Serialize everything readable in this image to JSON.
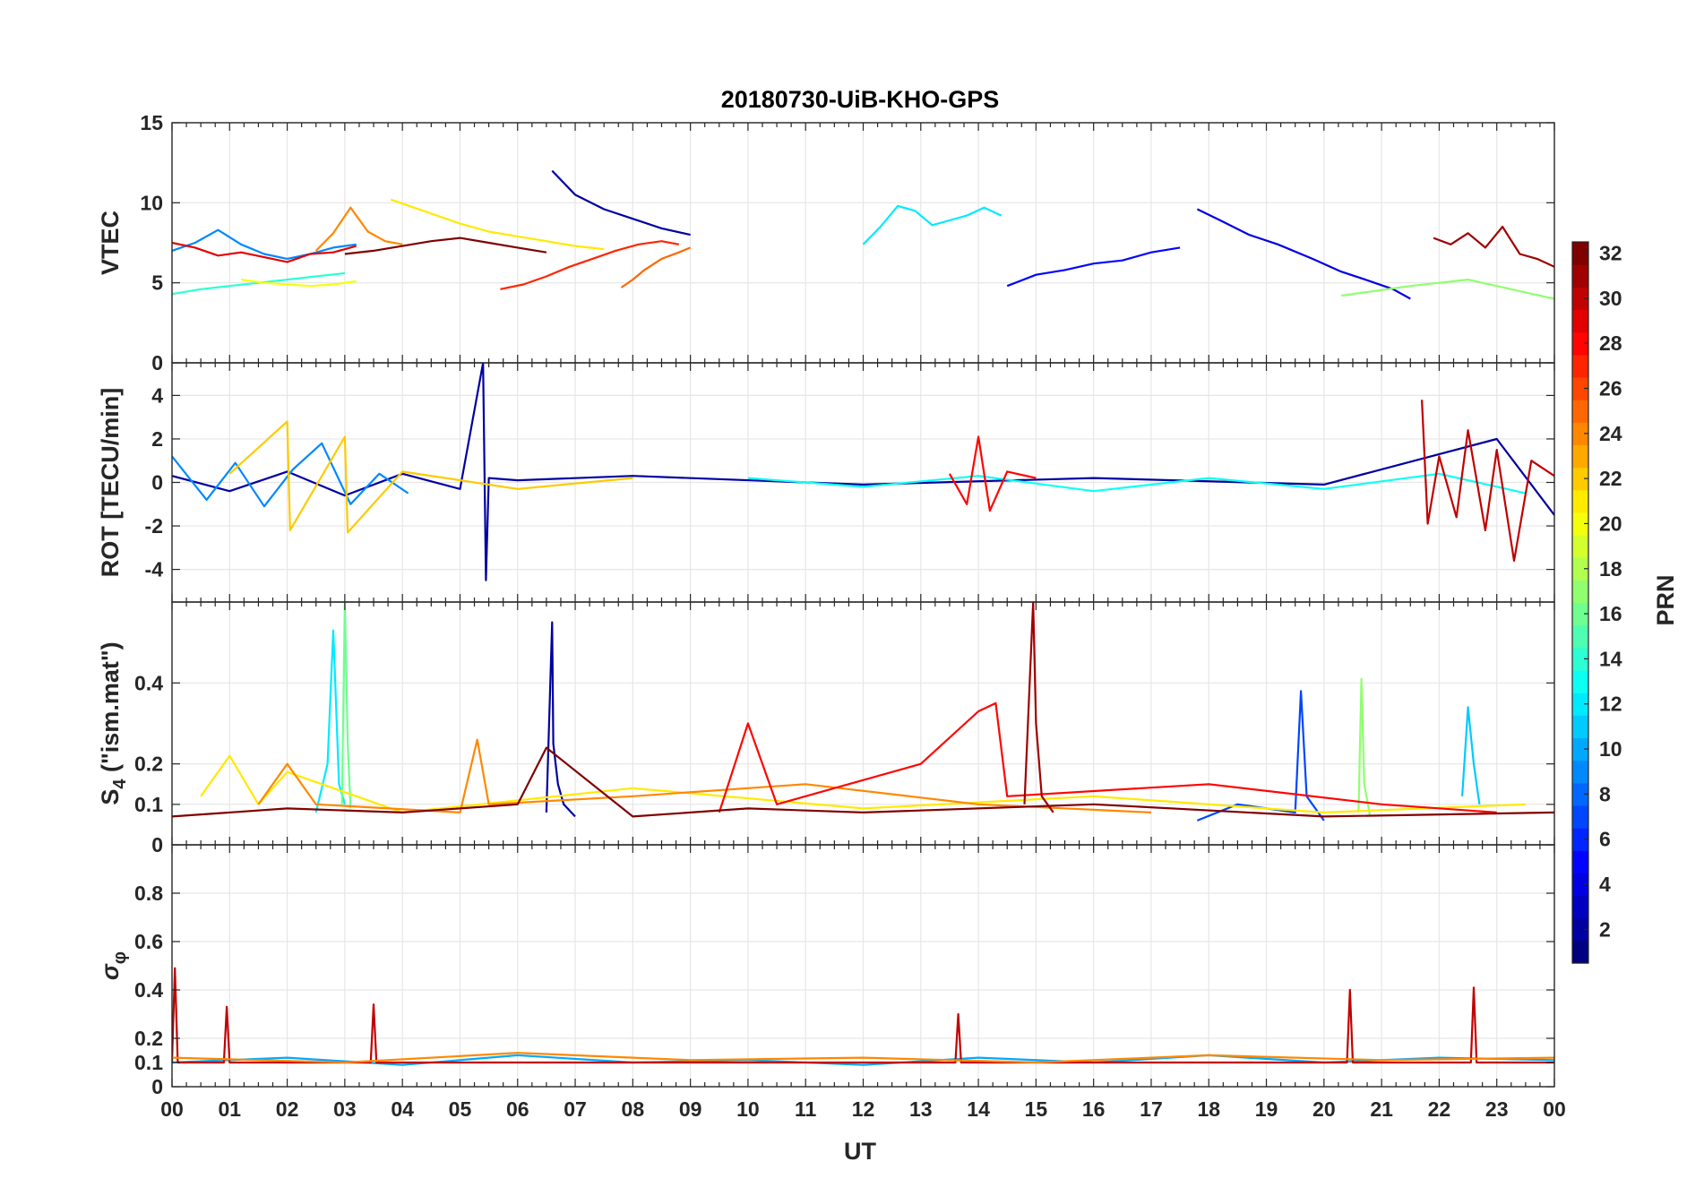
{
  "chart_data": {
    "type": "line",
    "title": "20180730-UiB-KHO-GPS",
    "xlabel": "UT",
    "xlim": [
      0,
      24
    ],
    "x_tick_labels": [
      "00",
      "01",
      "02",
      "03",
      "04",
      "05",
      "06",
      "07",
      "08",
      "09",
      "10",
      "11",
      "12",
      "13",
      "14",
      "15",
      "16",
      "17",
      "18",
      "19",
      "20",
      "21",
      "22",
      "23",
      "00"
    ],
    "grid": true,
    "colorbar": {
      "label": "PRN",
      "range": [
        1,
        32
      ],
      "tick_values": [
        2,
        4,
        6,
        8,
        10,
        12,
        14,
        16,
        18,
        20,
        22,
        24,
        26,
        28,
        30,
        32
      ],
      "tick_labels": [
        "2",
        "4",
        "6",
        "8",
        "10",
        "12",
        "14",
        "16",
        "18",
        "20",
        "22",
        "24",
        "26",
        "28",
        "30",
        "32"
      ],
      "colormap": "jet",
      "colors": [
        "#00008f",
        "#0000ff",
        "#0080ff",
        "#00ffff",
        "#80ff80",
        "#ffff00",
        "#ff8000",
        "#ff0000",
        "#800000"
      ]
    },
    "panels": [
      {
        "id": "vtec",
        "ylabel": "VTEC",
        "ylim": [
          0,
          15
        ],
        "y_tick_values": [
          0,
          5,
          10,
          15
        ],
        "y_tick_labels": [
          "0",
          "5",
          "10",
          "15"
        ],
        "series": [
          {
            "prn": 2,
            "x": [
              6.6,
              7.0,
              7.5,
              8.0,
              8.5,
              9.0
            ],
            "y": [
              12.0,
              10.5,
              9.6,
              9.0,
              8.4,
              8.0
            ]
          },
          {
            "prn": 5,
            "x": [
              14.5,
              15.0,
              15.5,
              16.0,
              16.5,
              17.0,
              17.5
            ],
            "y": [
              4.8,
              5.5,
              5.8,
              6.2,
              6.4,
              6.9,
              7.2
            ]
          },
          {
            "prn": 4,
            "x": [
              17.8,
              18.2,
              18.7,
              19.2,
              19.8,
              20.3,
              20.8,
              21.2,
              21.5
            ],
            "y": [
              9.6,
              8.9,
              8.0,
              7.4,
              6.5,
              5.7,
              5.1,
              4.6,
              4.0
            ]
          },
          {
            "prn": 9,
            "x": [
              0.0,
              0.4,
              0.8,
              1.2,
              1.6,
              2.0,
              2.4,
              2.8,
              3.2
            ],
            "y": [
              7.0,
              7.5,
              8.3,
              7.4,
              6.8,
              6.5,
              6.8,
              7.2,
              7.4
            ]
          },
          {
            "prn": 12,
            "x": [
              12.0,
              12.3,
              12.6,
              12.9,
              13.2,
              13.5,
              13.8,
              14.1,
              14.4
            ],
            "y": [
              7.4,
              8.5,
              9.8,
              9.5,
              8.6,
              8.9,
              9.2,
              9.7,
              9.2
            ]
          },
          {
            "prn": 14,
            "x": [
              0.0,
              0.5,
              1.0,
              1.5,
              2.0,
              2.5,
              3.0
            ],
            "y": [
              4.3,
              4.6,
              4.8,
              5.0,
              5.2,
              5.4,
              5.6
            ]
          },
          {
            "prn": 17,
            "x": [
              20.3,
              20.7,
              21.1,
              21.5,
              22.0,
              22.5,
              23.0,
              23.5,
              24.0
            ],
            "y": [
              4.2,
              4.4,
              4.6,
              4.8,
              5.0,
              5.2,
              4.8,
              4.4,
              4.0
            ]
          },
          {
            "prn": 20,
            "x": [
              1.2,
              1.6,
              2.0,
              2.4,
              2.8,
              3.2
            ],
            "y": [
              5.2,
              5.0,
              4.9,
              4.8,
              4.9,
              5.1
            ]
          },
          {
            "prn": 21,
            "x": [
              3.8,
              4.2,
              4.6,
              5.0,
              5.5,
              6.0,
              6.5,
              7.0,
              7.5
            ],
            "y": [
              10.2,
              9.7,
              9.2,
              8.7,
              8.2,
              7.9,
              7.6,
              7.3,
              7.1
            ]
          },
          {
            "prn": 24,
            "x": [
              2.5,
              2.8,
              3.1,
              3.4,
              3.7,
              4.0
            ],
            "y": [
              7.0,
              8.1,
              9.7,
              8.2,
              7.6,
              7.4
            ]
          },
          {
            "prn": 25,
            "x": [
              7.8,
              8.0,
              8.2,
              8.5,
              8.8,
              9.0
            ],
            "y": [
              4.7,
              5.2,
              5.8,
              6.5,
              6.9,
              7.2
            ]
          },
          {
            "prn": 27,
            "x": [
              5.7,
              6.1,
              6.5,
              6.9,
              7.3,
              7.7,
              8.1,
              8.5,
              8.8
            ],
            "y": [
              4.6,
              4.9,
              5.4,
              6.0,
              6.5,
              7.0,
              7.4,
              7.6,
              7.4
            ]
          },
          {
            "prn": 29,
            "x": [
              0.0,
              0.4,
              0.8,
              1.2,
              1.6,
              2.0,
              2.4,
              2.8,
              3.2
            ],
            "y": [
              7.5,
              7.2,
              6.7,
              6.9,
              6.6,
              6.3,
              6.8,
              6.9,
              7.3
            ]
          },
          {
            "prn": 31,
            "x": [
              21.9,
              22.2,
              22.5,
              22.8,
              23.1,
              23.4,
              23.7,
              24.0
            ],
            "y": [
              7.8,
              7.4,
              8.1,
              7.2,
              8.5,
              6.8,
              6.5,
              6.0
            ]
          },
          {
            "prn": 32,
            "x": [
              3.0,
              3.5,
              4.0,
              4.5,
              5.0,
              5.5,
              6.0,
              6.5
            ],
            "y": [
              6.8,
              7.0,
              7.3,
              7.6,
              7.8,
              7.5,
              7.2,
              6.9
            ]
          }
        ]
      },
      {
        "id": "rot",
        "ylabel": "ROT [TECU/min]",
        "ylim": [
          -5.5,
          5.5
        ],
        "y_tick_values": [
          -4,
          -2,
          0,
          2,
          4
        ],
        "y_tick_labels": [
          "-4",
          "-2",
          "0",
          "2",
          "4"
        ],
        "series": [
          {
            "prn": 2,
            "x": [
              0.0,
              1.0,
              2.0,
              3.0,
              4.0,
              5.0,
              5.4,
              5.45,
              5.5,
              6.0,
              8.0,
              12.0,
              16.0,
              20.0,
              23.0,
              24.0
            ],
            "y": [
              0.3,
              -0.4,
              0.5,
              -0.6,
              0.4,
              -0.3,
              5.5,
              -4.5,
              0.2,
              0.1,
              0.3,
              -0.1,
              0.2,
              -0.1,
              2.0,
              -1.5
            ]
          },
          {
            "prn": 9,
            "x": [
              0.0,
              0.6,
              1.1,
              1.6,
              2.1,
              2.6,
              3.1,
              3.6,
              4.1
            ],
            "y": [
              1.2,
              -0.8,
              0.9,
              -1.1,
              0.6,
              1.8,
              -1.0,
              0.4,
              -0.5
            ]
          },
          {
            "prn": 13,
            "x": [
              10.0,
              12.0,
              14.0,
              16.0,
              18.0,
              20.0,
              22.0,
              23.5
            ],
            "y": [
              0.2,
              -0.2,
              0.3,
              -0.4,
              0.2,
              -0.3,
              0.4,
              -0.5
            ]
          },
          {
            "prn": 22,
            "x": [
              1.0,
              2.0,
              2.05,
              3.0,
              3.05,
              4.0,
              6.0,
              8.0
            ],
            "y": [
              0.4,
              2.8,
              -2.2,
              2.1,
              -2.3,
              0.5,
              -0.3,
              0.2
            ]
          },
          {
            "prn": 28,
            "x": [
              13.5,
              13.8,
              14.0,
              14.2,
              14.5,
              15.0
            ],
            "y": [
              0.4,
              -1.0,
              2.1,
              -1.3,
              0.5,
              0.2
            ]
          },
          {
            "prn": 30,
            "x": [
              21.7,
              21.8,
              22.0,
              22.3,
              22.5,
              22.8,
              23.0,
              23.3,
              23.6,
              24.0
            ],
            "y": [
              3.8,
              -1.9,
              1.2,
              -1.6,
              2.4,
              -2.2,
              1.5,
              -3.6,
              1.0,
              0.3
            ]
          }
        ]
      },
      {
        "id": "s4",
        "ylabel": "S4 (\"ism.mat\")",
        "ylabel_main": "S",
        "ylabel_sub": "4",
        "ylabel_rest": " (\"ism.mat\")",
        "ylim": [
          0,
          0.6
        ],
        "y_tick_values": [
          0,
          0.1,
          0.2,
          0.4
        ],
        "y_tick_labels": [
          "0",
          "0.1",
          "0.2",
          "0.4"
        ],
        "series": [
          {
            "prn": 2,
            "x": [
              6.5,
              6.6,
              6.62,
              6.7,
              6.8,
              7.0
            ],
            "y": [
              0.08,
              0.55,
              0.25,
              0.15,
              0.1,
              0.07
            ]
          },
          {
            "prn": 7,
            "x": [
              17.8,
              18.5,
              19.5,
              19.6,
              19.7,
              20.0
            ],
            "y": [
              0.06,
              0.1,
              0.08,
              0.38,
              0.12,
              0.06
            ]
          },
          {
            "prn": 11,
            "x": [
              22.4,
              22.5,
              22.6,
              22.7
            ],
            "y": [
              0.12,
              0.34,
              0.2,
              0.1
            ]
          },
          {
            "prn": 12,
            "x": [
              2.5,
              2.7,
              2.8,
              2.9,
              3.0
            ],
            "y": [
              0.08,
              0.2,
              0.53,
              0.15,
              0.1
            ]
          },
          {
            "prn": 16,
            "x": [
              2.95,
              3.0,
              3.05,
              3.1
            ],
            "y": [
              0.1,
              0.6,
              0.25,
              0.09
            ]
          },
          {
            "prn": 17,
            "x": [
              20.6,
              20.65,
              20.7,
              20.8
            ],
            "y": [
              0.08,
              0.41,
              0.15,
              0.07
            ]
          },
          {
            "prn": 21,
            "x": [
              0.5,
              1.0,
              1.5,
              2.0,
              4.0,
              8.0,
              12.0,
              16.0,
              20.0,
              23.5
            ],
            "y": [
              0.12,
              0.22,
              0.1,
              0.18,
              0.08,
              0.14,
              0.09,
              0.12,
              0.08,
              0.1
            ]
          },
          {
            "prn": 24,
            "x": [
              1.5,
              2.0,
              2.5,
              5.0,
              5.3,
              5.5,
              8.0,
              11.0,
              14.0,
              17.0
            ],
            "y": [
              0.1,
              0.2,
              0.1,
              0.08,
              0.26,
              0.1,
              0.12,
              0.15,
              0.1,
              0.08
            ]
          },
          {
            "prn": 28,
            "x": [
              9.5,
              10.0,
              10.5,
              13.0,
              14.0,
              14.3,
              14.5,
              18.0,
              21.0,
              23.0
            ],
            "y": [
              0.08,
              0.3,
              0.1,
              0.2,
              0.33,
              0.35,
              0.12,
              0.15,
              0.1,
              0.08
            ]
          },
          {
            "prn": 31,
            "x": [
              14.8,
              14.95,
              15.0,
              15.1,
              15.3
            ],
            "y": [
              0.1,
              0.6,
              0.3,
              0.12,
              0.08
            ]
          },
          {
            "prn": 32,
            "x": [
              0.0,
              2.0,
              4.0,
              6.0,
              6.5,
              8.0,
              10.0,
              12.0,
              16.0,
              20.0,
              24.0
            ],
            "y": [
              0.07,
              0.09,
              0.08,
              0.1,
              0.24,
              0.07,
              0.09,
              0.08,
              0.1,
              0.07,
              0.08
            ]
          }
        ]
      },
      {
        "id": "sigma_phi",
        "ylabel": "σφ",
        "ylabel_main": "σ",
        "ylabel_sub": "φ",
        "ylim": [
          0,
          1
        ],
        "y_tick_values": [
          0,
          0.1,
          0.2,
          0.4,
          0.6,
          0.8
        ],
        "y_tick_labels": [
          "0",
          "0.1",
          "0.2",
          "0.4",
          "0.6",
          "0.8"
        ],
        "series": [
          {
            "prn": 10,
            "x": [
              0.0,
              2.0,
              4.0,
              6.0,
              8.0,
              10.0,
              12.0,
              14.0,
              16.0,
              18.0,
              20.0,
              22.0,
              24.0
            ],
            "y": [
              0.1,
              0.12,
              0.09,
              0.13,
              0.1,
              0.11,
              0.09,
              0.12,
              0.1,
              0.13,
              0.1,
              0.12,
              0.11
            ]
          },
          {
            "prn": 30,
            "x": [
              0.0,
              0.05,
              0.1,
              0.9,
              0.95,
              1.0,
              3.45,
              3.5,
              3.55,
              13.6,
              13.65,
              13.7,
              20.4,
              20.45,
              20.5,
              22.55,
              22.6,
              22.65,
              24.0
            ],
            "y": [
              0.1,
              0.49,
              0.1,
              0.1,
              0.33,
              0.1,
              0.1,
              0.34,
              0.1,
              0.1,
              0.3,
              0.1,
              0.1,
              0.4,
              0.1,
              0.1,
              0.41,
              0.1,
              0.1
            ]
          },
          {
            "prn": 24,
            "x": [
              0.0,
              3.0,
              6.0,
              9.0,
              12.0,
              15.0,
              18.0,
              21.0,
              24.0
            ],
            "y": [
              0.12,
              0.1,
              0.14,
              0.11,
              0.12,
              0.1,
              0.13,
              0.11,
              0.12
            ]
          }
        ]
      }
    ]
  }
}
